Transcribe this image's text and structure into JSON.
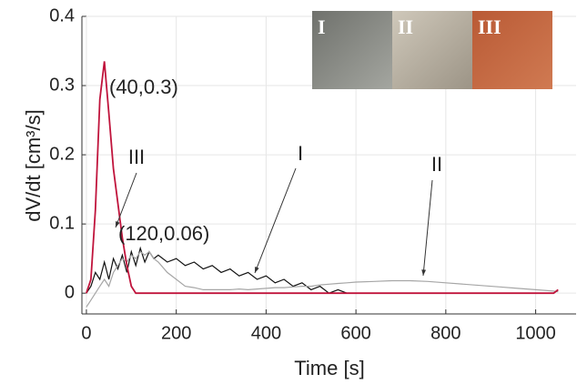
{
  "chart_data": {
    "type": "line",
    "xlabel": "Time [s]",
    "ylabel": "dV/dt [cm³/s]",
    "x": [
      0,
      10,
      20,
      30,
      40,
      50,
      60,
      70,
      80,
      90,
      100,
      110,
      120,
      130,
      140,
      150,
      160,
      180,
      200,
      220,
      240,
      260,
      280,
      300,
      320,
      340,
      360,
      380,
      400,
      420,
      440,
      460,
      480,
      500,
      520,
      540,
      560,
      580,
      600,
      640,
      680,
      720,
      760,
      800,
      840,
      880,
      920,
      960,
      1000,
      1040,
      1050
    ],
    "series": [
      {
        "name": "I",
        "color": "#111111",
        "values": [
          0,
          0.01,
          0.03,
          0.02,
          0.045,
          0.02,
          0.05,
          0.035,
          0.055,
          0.03,
          0.06,
          0.04,
          0.065,
          0.045,
          0.06,
          0.05,
          0.055,
          0.045,
          0.05,
          0.04,
          0.045,
          0.035,
          0.04,
          0.03,
          0.035,
          0.025,
          0.03,
          0.02,
          0.025,
          0.015,
          0.02,
          0.01,
          0.015,
          0.005,
          0.01,
          0,
          0.005,
          0,
          null,
          null,
          null,
          null,
          null,
          null,
          null,
          null,
          null,
          null,
          null,
          null,
          null
        ]
      },
      {
        "name": "II",
        "color": "#a6a6a6",
        "values": [
          -0.02,
          -0.01,
          0,
          0.01,
          0.02,
          0.01,
          0.03,
          0.04,
          0.05,
          0.045,
          0.055,
          0.05,
          0.06,
          0.055,
          0.06,
          0.05,
          0.045,
          0.03,
          0.02,
          0.01,
          0.008,
          0.005,
          0.005,
          0.005,
          0.005,
          0.006,
          0.005,
          0.006,
          0.007,
          0.008,
          0.008,
          0.009,
          0.01,
          0.01,
          0.012,
          0.013,
          0.014,
          0.015,
          0.016,
          0.017,
          0.018,
          0.018,
          0.017,
          0.015,
          0.013,
          0.011,
          0.009,
          0.007,
          0.005,
          0.003,
          0.002
        ]
      },
      {
        "name": "III",
        "color": "#c0143c",
        "values": [
          0,
          0.02,
          0.12,
          0.28,
          0.335,
          0.26,
          0.18,
          0.13,
          0.08,
          0.04,
          0.01,
          0,
          0,
          0,
          0,
          0,
          0,
          0,
          0,
          0,
          0,
          0,
          0,
          0,
          0,
          0,
          0,
          0,
          0,
          0,
          0,
          0,
          0,
          0,
          0,
          0,
          0,
          0,
          0,
          0,
          0,
          0,
          0,
          0,
          0,
          0,
          0,
          0,
          0,
          0,
          0.005
        ]
      }
    ],
    "annotations": [
      "(40,0.3)",
      "(120,0.06)"
    ],
    "xlim": [
      -10,
      1090
    ],
    "ylim": [
      -0.03,
      0.4
    ],
    "xticks": [
      0,
      200,
      400,
      600,
      800,
      1000
    ],
    "yticks": [
      0,
      0.1,
      0.2,
      0.3,
      0.4
    ],
    "grid": true
  }
}
